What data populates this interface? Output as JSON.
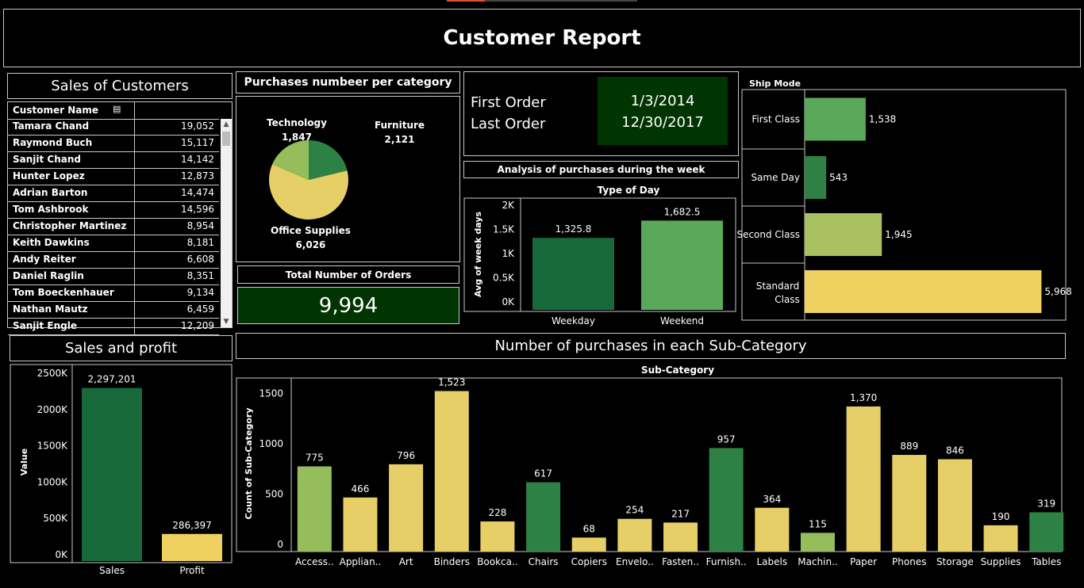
{
  "report": {
    "title": "Customer Report"
  },
  "sales_customers": {
    "title": "Sales of Customers",
    "column_header": "Customer Name",
    "rows": [
      {
        "name": "Tamara Chand",
        "value": "19,052"
      },
      {
        "name": "Raymond Buch",
        "value": "15,117"
      },
      {
        "name": "Sanjit Chand",
        "value": "14,142"
      },
      {
        "name": "Hunter Lopez",
        "value": "12,873"
      },
      {
        "name": "Adrian Barton",
        "value": "14,474"
      },
      {
        "name": "Tom Ashbrook",
        "value": "14,596"
      },
      {
        "name": "Christopher Martinez",
        "value": "8,954"
      },
      {
        "name": "Keith Dawkins",
        "value": "8,181"
      },
      {
        "name": "Andy Reiter",
        "value": "6,608"
      },
      {
        "name": "Daniel Raglin",
        "value": "8,351"
      },
      {
        "name": "Tom Boeckenhauer",
        "value": "9,134"
      },
      {
        "name": "Nathan Mautz",
        "value": "6,459"
      },
      {
        "name": "Sanjit Engle",
        "value": "12,209"
      }
    ]
  },
  "purchases_category": {
    "title": "Purchases numbeer per category"
  },
  "total_orders": {
    "title": "Total Number of Orders",
    "value": "9,994"
  },
  "orders": {
    "first_label": "First Order",
    "last_label": "Last Order",
    "first_date": "1/3/2014",
    "last_date": "12/30/2017"
  },
  "week": {
    "title": "Analysis of purchases during the week"
  },
  "sales_profit": {
    "title": "Sales and profit"
  },
  "subcat": {
    "title": "Number of purchases in each Sub-Category"
  },
  "colors": {
    "dark_green": "#17693a",
    "green": "#2e8145",
    "mid_green": "#5aa85a",
    "light_green": "#a8c060",
    "yellow": "#f0d060",
    "pale_yellow": "#e6cf66",
    "lime": "#95bd5b",
    "box_green": "#003400"
  },
  "chart_data": [
    {
      "type": "pie",
      "categories": [
        "Furniture",
        "Office Supplies",
        "Technology"
      ],
      "values": [
        2121,
        6026,
        1847
      ],
      "labels": [
        "2,121",
        "6,026",
        "1,847"
      ],
      "colors": [
        "#2e8145",
        "#e6cf66",
        "#95bd5b"
      ]
    },
    {
      "type": "bar",
      "title": "Type of Day",
      "categories": [
        "Weekday",
        "Weekend"
      ],
      "values": [
        1325.8,
        1682.5
      ],
      "labels": [
        "1,325.8",
        "1,682.5"
      ],
      "ylabel": "Avg of week days",
      "ylim": [
        0,
        2000
      ],
      "yticks": [
        0,
        500,
        1000,
        1500,
        2000
      ],
      "ytick_labels": [
        "0K",
        "0.5K",
        "1K",
        "1.5K",
        "2K"
      ],
      "colors": [
        "#17693a",
        "#5aa85a"
      ]
    },
    {
      "type": "bar",
      "orientation": "horizontal",
      "title": "Ship Mode",
      "categories": [
        "First Class",
        "Same Day",
        "Second Class",
        "Standard Class"
      ],
      "values": [
        1538,
        543,
        1945,
        5968
      ],
      "labels": [
        "1,538",
        "543",
        "1,945",
        "5,968"
      ],
      "colors": [
        "#5aa85a",
        "#2e8145",
        "#a8c060",
        "#f0d060"
      ]
    },
    {
      "type": "bar",
      "categories": [
        "Sales",
        "Profit"
      ],
      "values": [
        2297201,
        286397
      ],
      "labels": [
        "2,297,201",
        "286,397"
      ],
      "ylabel": "Value",
      "ylim": [
        0,
        2500000
      ],
      "yticks": [
        0,
        500000,
        1000000,
        1500000,
        2000000,
        2500000
      ],
      "ytick_labels": [
        "0K",
        "500K",
        "1000K",
        "1500K",
        "2000K",
        "2500K"
      ],
      "colors": [
        "#17693a",
        "#f0d060"
      ]
    },
    {
      "type": "bar",
      "title": "Sub-Category",
      "categories": [
        "Access..",
        "Applian..",
        "Art",
        "Binders",
        "Bookca..",
        "Chairs",
        "Copiers",
        "Envelo..",
        "Fasten..",
        "Furnish..",
        "Labels",
        "Machin..",
        "Paper",
        "Phones",
        "Storage",
        "Supplies",
        "Tables"
      ],
      "values": [
        775,
        466,
        796,
        1523,
        228,
        617,
        68,
        254,
        217,
        957,
        364,
        115,
        1370,
        889,
        846,
        190,
        319
      ],
      "labels": [
        "775",
        "466",
        "796",
        "1,523",
        "228",
        "617",
        "68",
        "254",
        "217",
        "957",
        "364",
        "115",
        "1,370",
        "889",
        "846",
        "190",
        "319"
      ],
      "ylabel": "Count of Sub-Category",
      "ylim": [
        0,
        1700
      ],
      "yticks": [
        0,
        500,
        1000,
        1500
      ],
      "colors": [
        "#95bd5b",
        "#e6cf66",
        "#e6cf66",
        "#e6cf66",
        "#e6cf66",
        "#2e8145",
        "#e6cf66",
        "#e6cf66",
        "#e6cf66",
        "#2e8145",
        "#e6cf66",
        "#95bd5b",
        "#e6cf66",
        "#e6cf66",
        "#e6cf66",
        "#e6cf66",
        "#2e8145"
      ]
    }
  ]
}
